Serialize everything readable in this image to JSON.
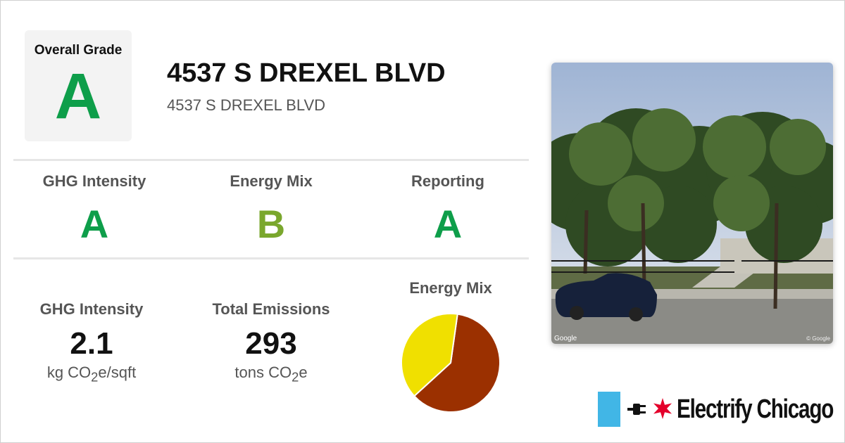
{
  "overall": {
    "label": "Overall Grade",
    "grade": "A"
  },
  "building": {
    "title": "4537 S DREXEL BLVD",
    "address": "4537 S DREXEL BLVD"
  },
  "grades": [
    {
      "label": "GHG Intensity",
      "grade": "A",
      "color": "#0e9e4a"
    },
    {
      "label": "Energy Mix",
      "grade": "B",
      "color": "#7aa72d"
    },
    {
      "label": "Reporting",
      "grade": "A",
      "color": "#0e9e4a"
    }
  ],
  "stats": {
    "ghg": {
      "label": "GHG Intensity",
      "value": "2.1",
      "unit_pre": "kg CO",
      "unit_sub": "2",
      "unit_post": "e/sqft"
    },
    "emissions": {
      "label": "Total Emissions",
      "value": "293",
      "unit_pre": "tons CO",
      "unit_sub": "2",
      "unit_post": "e"
    }
  },
  "energy_mix": {
    "label": "Energy Mix",
    "slices": [
      {
        "value": 61,
        "color": "#9b3000"
      },
      {
        "value": 39,
        "color": "#f0e000"
      }
    ]
  },
  "photo": {
    "credit_left": "Google",
    "credit_right": "© Google"
  },
  "brand": {
    "name": "Electrify Chicago",
    "flag_color": "#41b6e6",
    "star_color": "#e4002b"
  }
}
